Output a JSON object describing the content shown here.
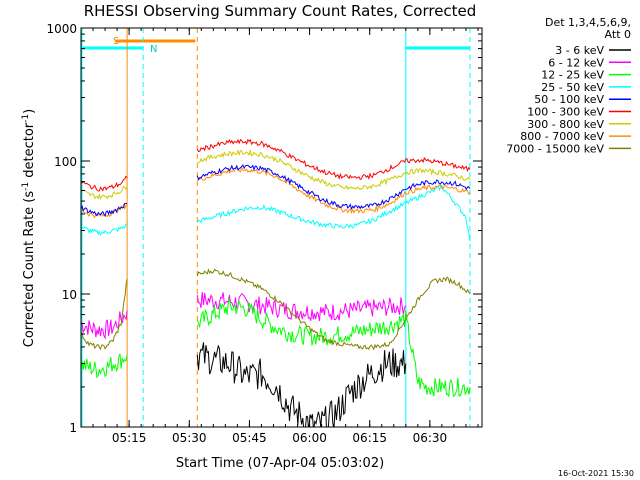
{
  "chart_data": {
    "type": "line",
    "title": "RHESSI Observing Summary Count Rates, Corrected",
    "xlabel": "Start Time (07-Apr-04 05:03:02)",
    "ylabel_pre": "Corrected Count Rate (s",
    "ylabel_sup1": "-1",
    "ylabel_mid": " detector",
    "ylabel_sup2": "-1",
    "ylabel_post": ")",
    "yscale": "log",
    "ylim": [
      1,
      1000
    ],
    "x_unit": "minutes after 05:03:02",
    "xlim": [
      0,
      100
    ],
    "x_ticks": [
      {
        "x": 12,
        "label": "05:15"
      },
      {
        "x": 27,
        "label": "05:30"
      },
      {
        "x": 42,
        "label": "05:45"
      },
      {
        "x": 57,
        "label": "06:00"
      },
      {
        "x": 72,
        "label": "06:15"
      },
      {
        "x": 87,
        "label": "06:30"
      }
    ],
    "y_ticks": [
      {
        "y": 1,
        "label": "1"
      },
      {
        "y": 10,
        "label": "10"
      },
      {
        "y": 100,
        "label": "100"
      },
      {
        "y": 1000,
        "label": "1000"
      }
    ],
    "legend": {
      "header1": "Det 1,3,4,5,6,9,",
      "header2": "Att 0",
      "position": "right"
    },
    "annotations": {
      "saa_label": "S",
      "night_label": "N",
      "saa_bar": [
        8.5,
        28.5
      ],
      "night_bars": [
        [
          0,
          15.5
        ],
        [
          81,
          97
        ]
      ],
      "vlines": [
        {
          "x": 11.5,
          "color": "#ff8c00",
          "style": "solid"
        },
        {
          "x": 15.5,
          "color": "#00ffff",
          "style": "dashed"
        },
        {
          "x": 29,
          "color": "#ff8c00",
          "style": "dashed"
        },
        {
          "x": 81,
          "color": "#00ffff",
          "style": "solid"
        },
        {
          "x": 97,
          "color": "#00ffff",
          "style": "dashed"
        }
      ]
    },
    "timestamp": "16-Oct-2021 15:30",
    "series": [
      {
        "name": "3 - 6 keV",
        "color": "#000000",
        "segments": [
          {
            "x": [
              29,
              33,
              37,
              41,
              45,
              49,
              52,
              55,
              58,
              61,
              64,
              67,
              70,
              73,
              76,
              79,
              81
            ],
            "y": [
              3.5,
              3.2,
              3.0,
              2.4,
              2.5,
              2.0,
              1.4,
              1.2,
              1.0,
              1.1,
              1.3,
              1.8,
              2.2,
              2.6,
              3.0,
              3.0,
              3.0
            ]
          }
        ]
      },
      {
        "name": "6 - 12 keV",
        "color": "#ff00ff",
        "segments": [
          {
            "x": [
              0,
              2,
              4,
              6,
              8,
              9,
              10,
              11,
              11.5
            ],
            "y": [
              6.0,
              5.6,
              5.4,
              5.4,
              5.6,
              6.0,
              6.5,
              7.0,
              7.5
            ]
          },
          {
            "x": [
              29,
              33,
              37,
              41,
              45,
              49,
              53,
              57,
              61,
              65,
              69,
              73,
              77,
              81
            ],
            "y": [
              9.0,
              9.0,
              8.8,
              8.6,
              8.2,
              7.8,
              7.5,
              7.4,
              7.3,
              7.4,
              7.6,
              7.8,
              8.0,
              8.2
            ]
          }
        ]
      },
      {
        "name": "12 - 25 keV",
        "color": "#00ff00",
        "segments": [
          {
            "x": [
              0,
              2,
              4,
              6,
              8,
              10,
              11.5
            ],
            "y": [
              3.0,
              2.8,
              2.7,
              2.8,
              3.0,
              3.2,
              3.5
            ]
          },
          {
            "x": [
              29,
              31,
              33,
              35,
              37,
              39,
              41,
              45,
              49,
              53,
              57,
              61,
              65,
              69,
              73,
              77,
              81,
              84,
              86,
              88,
              90,
              92,
              94,
              97
            ],
            "y": [
              6.0,
              6.5,
              7.0,
              7.5,
              8.0,
              8.0,
              7.8,
              6.5,
              5.5,
              5.0,
              4.8,
              4.8,
              5.0,
              5.2,
              5.5,
              5.8,
              6.5,
              2.2,
              2.0,
              2.0,
              2.0,
              2.0,
              2.0,
              2.0
            ]
          }
        ]
      },
      {
        "name": "25 - 50 keV",
        "color": "#00ffff",
        "segments": [
          {
            "x": [
              0,
              2,
              4,
              6,
              8,
              10,
              11.5
            ],
            "y": [
              32,
              30,
              29,
              29,
              30,
              31,
              33
            ]
          },
          {
            "x": [
              29,
              33,
              37,
              41,
              45,
              49,
              53,
              57,
              61,
              65,
              69,
              73,
              77,
              81,
              85,
              88,
              90,
              93,
              96,
              97
            ],
            "y": [
              35,
              38,
              41,
              44,
              45,
              42,
              38,
              35,
              33,
              32,
              33,
              36,
              42,
              48,
              55,
              60,
              64,
              50,
              38,
              25
            ]
          }
        ]
      },
      {
        "name": "50 - 100 keV",
        "color": "#0000ff",
        "segments": [
          {
            "x": [
              0,
              2,
              4,
              6,
              8,
              10,
              11.5
            ],
            "y": [
              45,
              42,
              40,
              40,
              42,
              45,
              48
            ]
          },
          {
            "x": [
              29,
              33,
              37,
              41,
              45,
              49,
              53,
              57,
              61,
              65,
              69,
              73,
              77,
              81,
              85,
              89,
              93,
              97
            ],
            "y": [
              75,
              82,
              88,
              90,
              88,
              80,
              68,
              58,
              50,
              46,
              45,
              46,
              52,
              62,
              68,
              70,
              68,
              62
            ]
          }
        ]
      },
      {
        "name": "100 - 300 keV",
        "color": "#ff0000",
        "segments": [
          {
            "x": [
              0,
              2,
              4,
              6,
              8,
              10,
              11.5
            ],
            "y": [
              70,
              65,
              62,
              62,
              64,
              68,
              75
            ]
          },
          {
            "x": [
              29,
              33,
              37,
              41,
              45,
              49,
              53,
              57,
              61,
              65,
              69,
              73,
              77,
              81,
              85,
              89,
              93,
              97
            ],
            "y": [
              120,
              130,
              138,
              140,
              135,
              122,
              105,
              92,
              82,
              76,
              75,
              78,
              88,
              100,
              102,
              98,
              92,
              86
            ]
          }
        ]
      },
      {
        "name": "300 - 800 keV",
        "color": "#cccc00",
        "segments": [
          {
            "x": [
              0,
              2,
              4,
              6,
              8,
              10,
              11.5
            ],
            "y": [
              60,
              56,
              54,
              54,
              56,
              60,
              65
            ]
          },
          {
            "x": [
              29,
              33,
              37,
              41,
              45,
              49,
              53,
              57,
              61,
              65,
              69,
              73,
              77,
              81,
              85,
              89,
              93,
              97
            ],
            "y": [
              100,
              108,
              114,
              116,
              112,
              102,
              88,
              76,
              68,
              63,
              62,
              65,
              72,
              82,
              85,
              82,
              78,
              72
            ]
          }
        ]
      },
      {
        "name": "800 - 7000 keV",
        "color": "#ff8c00",
        "segments": [
          {
            "x": [
              0,
              2,
              4,
              6,
              8,
              10,
              11.5
            ],
            "y": [
              43,
              40,
              39,
              39,
              41,
              44,
              47
            ]
          },
          {
            "x": [
              29,
              33,
              37,
              41,
              45,
              49,
              53,
              57,
              61,
              65,
              69,
              73,
              77,
              81,
              85,
              89,
              93,
              97
            ],
            "y": [
              72,
              78,
              84,
              86,
              83,
              76,
              64,
              54,
              47,
              43,
              42,
              43,
              48,
              58,
              62,
              64,
              62,
              58
            ]
          }
        ]
      },
      {
        "name": "7000 - 15000 keV",
        "color": "#808000",
        "segments": [
          {
            "x": [
              0,
              2,
              4,
              6,
              8,
              10,
              11,
              11.5
            ],
            "y": [
              5.0,
              4.2,
              4.0,
              4.0,
              4.5,
              6.0,
              10,
              13
            ]
          },
          {
            "x": [
              29,
              33,
              37,
              41,
              45,
              49,
              53,
              57,
              61,
              65,
              69,
              73,
              77,
              81,
              85,
              88,
              91,
              94,
              97
            ],
            "y": [
              14,
              15,
              14,
              12.5,
              11,
              9,
              7,
              5.5,
              4.5,
              4.2,
              4.0,
              4.0,
              4.2,
              6.5,
              10,
              12.5,
              13,
              12,
              10
            ]
          }
        ]
      }
    ]
  }
}
